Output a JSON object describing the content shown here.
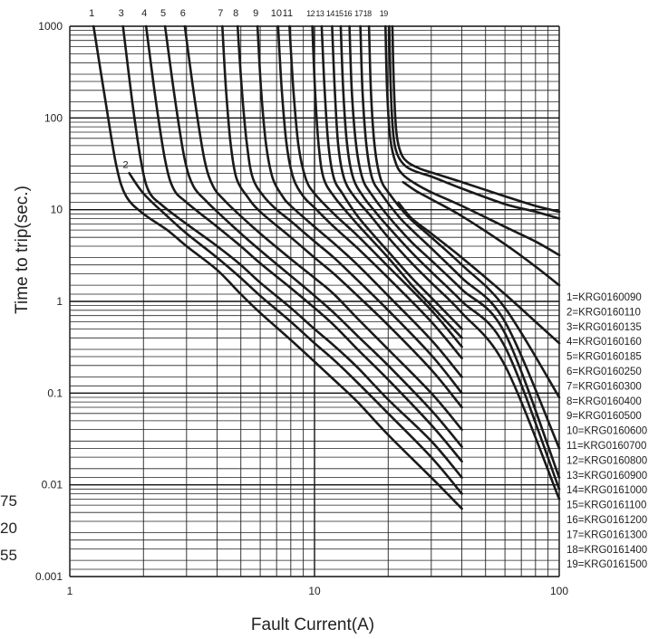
{
  "chart_data": {
    "type": "line",
    "title": "",
    "xlabel": "Fault Current(A)",
    "ylabel": "Time to trip(sec.)",
    "x_scale": "log",
    "y_scale": "log",
    "xlim": [
      1,
      100
    ],
    "ylim": [
      0.001,
      1000
    ],
    "grid": true,
    "legend_position": "right",
    "x_tick_labels": [
      {
        "value": 1,
        "label": "1"
      },
      {
        "value": 10,
        "label": "10"
      },
      {
        "value": 100,
        "label": "100"
      }
    ],
    "y_tick_labels": [
      {
        "value": 1000,
        "label": "1000"
      },
      {
        "value": 100,
        "label": "100"
      },
      {
        "value": 10,
        "label": "10"
      },
      {
        "value": 1,
        "label": "1"
      },
      {
        "value": 0.1,
        "label": "0.1"
      },
      {
        "value": 0.01,
        "label": "0.01"
      },
      {
        "value": 0.001,
        "label": "0.001"
      }
    ],
    "left_edge_labels": [
      "75",
      "20",
      "55"
    ],
    "series": [
      {
        "name": "1=KRG0160090",
        "label": "1",
        "x": [
          1.25,
          1.4,
          1.55,
          1.7,
          2,
          2.5,
          3,
          4,
          5,
          6,
          8,
          10,
          12,
          15,
          20,
          30,
          40
        ],
        "y": [
          1000,
          150,
          30,
          14,
          9,
          6,
          4,
          2.2,
          1.2,
          0.75,
          0.38,
          0.22,
          0.14,
          0.08,
          0.035,
          0.012,
          0.0055
        ]
      },
      {
        "name": "2=KRG0160110",
        "label": "2",
        "x": [
          1.75,
          2,
          2.5,
          3,
          4,
          5,
          6,
          8,
          10,
          12,
          15,
          20,
          30,
          40
        ],
        "y": [
          25,
          15,
          8.5,
          5.5,
          3,
          1.8,
          1.15,
          0.6,
          0.35,
          0.23,
          0.13,
          0.06,
          0.02,
          0.008
        ]
      },
      {
        "name": "3=KRG0160135",
        "label": "3",
        "x": [
          1.65,
          1.8,
          1.95,
          2.1,
          2.4,
          3,
          4,
          5,
          6,
          8,
          10,
          12,
          15,
          20,
          30,
          40
        ],
        "y": [
          1000,
          150,
          35,
          16,
          11,
          7,
          4,
          2.5,
          1.6,
          0.85,
          0.5,
          0.33,
          0.19,
          0.085,
          0.03,
          0.012
        ]
      },
      {
        "name": "4=KRG0160160",
        "label": "4",
        "x": [
          2.05,
          2.25,
          2.45,
          2.65,
          3,
          4,
          5,
          6,
          8,
          10,
          12,
          15,
          20,
          30,
          40
        ],
        "y": [
          1000,
          150,
          35,
          17,
          12,
          6.5,
          4,
          2.6,
          1.4,
          0.85,
          0.55,
          0.3,
          0.14,
          0.045,
          0.018
        ]
      },
      {
        "name": "5=KRG0160185",
        "label": "5",
        "x": [
          2.45,
          2.7,
          2.95,
          3.2,
          3.6,
          4,
          5,
          6,
          8,
          10,
          12,
          15,
          20,
          30,
          40
        ],
        "y": [
          1000,
          150,
          35,
          18,
          12.5,
          9.5,
          5.5,
          3.6,
          1.9,
          1.15,
          0.75,
          0.42,
          0.2,
          0.065,
          0.026
        ]
      },
      {
        "name": "6=KRG0160250",
        "label": "6",
        "x": [
          2.95,
          3.25,
          3.55,
          3.85,
          4.3,
          5,
          6,
          8,
          10,
          12,
          15,
          20,
          30,
          40
        ],
        "y": [
          1000,
          150,
          35,
          18,
          12.5,
          8.5,
          5.5,
          2.9,
          1.8,
          1.2,
          0.65,
          0.3,
          0.1,
          0.04
        ]
      },
      {
        "name": "7=KRG0160300",
        "label": "7",
        "x": [
          4.2,
          4.35,
          4.55,
          4.8,
          5.3,
          6,
          8,
          10,
          12,
          15,
          20,
          30,
          40
        ],
        "y": [
          1000,
          200,
          50,
          22,
          14,
          9.5,
          5,
          3,
          2,
          1.15,
          0.55,
          0.18,
          0.07
        ]
      },
      {
        "name": "8=KRG0160400",
        "label": "8",
        "x": [
          4.85,
          5.05,
          5.3,
          5.6,
          6.2,
          7,
          8,
          10,
          12,
          15,
          20,
          30,
          40
        ],
        "y": [
          1000,
          200,
          50,
          22,
          14,
          10,
          7.5,
          4.5,
          3,
          1.7,
          0.8,
          0.26,
          0.1
        ]
      },
      {
        "name": "9=KRG0160500",
        "label": "9",
        "x": [
          5.85,
          6.05,
          6.35,
          6.75,
          7.4,
          8,
          10,
          12,
          15,
          20,
          30,
          40
        ],
        "y": [
          1000,
          200,
          50,
          22,
          14,
          11,
          6.5,
          4.3,
          2.5,
          1.15,
          0.38,
          0.15
        ]
      },
      {
        "name": "10=KRG0160600",
        "label": "10",
        "x": [
          7.1,
          7.35,
          7.7,
          8.2,
          9,
          10,
          12,
          15,
          20,
          30,
          40
        ],
        "y": [
          1000,
          200,
          50,
          22,
          14,
          10.5,
          6.5,
          3.8,
          1.8,
          0.6,
          0.24
        ]
      },
      {
        "name": "11=KRG0160700",
        "label": "11",
        "x": [
          7.9,
          8.2,
          8.6,
          9.2,
          10,
          12,
          15,
          20,
          30,
          40
        ],
        "y": [
          1000,
          200,
          50,
          22,
          15,
          9,
          5.2,
          2.4,
          0.8,
          0.32
        ]
      },
      {
        "name": "12=KRG0160800",
        "label": "12",
        "x": [
          9.8,
          10.05,
          10.4,
          10.9,
          12,
          14,
          16,
          20,
          25,
          30,
          40
        ],
        "y": [
          1000,
          200,
          50,
          22,
          14,
          8.5,
          5.7,
          3,
          1.5,
          0.9,
          0.4
        ]
      },
      {
        "name": "13=KRG0160900",
        "label": "13",
        "x": [
          10.7,
          11,
          11.4,
          12,
          13,
          15,
          18,
          20,
          25,
          30,
          40
        ],
        "y": [
          1000,
          200,
          50,
          22,
          15,
          8.5,
          4.8,
          3.5,
          1.8,
          1.1,
          0.5
        ]
      },
      {
        "name": "14=KRG0161000",
        "label": "14",
        "x": [
          11.8,
          12.1,
          12.5,
          13.2,
          14.5,
          17,
          20,
          25,
          30,
          40,
          60,
          100
        ],
        "y": [
          1000,
          200,
          50,
          22,
          14,
          8.5,
          5,
          2.6,
          1.6,
          0.75,
          0.2,
          0.007
        ]
      },
      {
        "name": "15=KRG0161100",
        "label": "15",
        "x": [
          12.8,
          13.1,
          13.6,
          14.4,
          15.8,
          18,
          20,
          25,
          30,
          40,
          60,
          100
        ],
        "y": [
          1000,
          200,
          50,
          22,
          14,
          9,
          6.5,
          3.4,
          2.1,
          1,
          0.32,
          0.009
        ]
      },
      {
        "name": "16=KRG0161200",
        "label": "16",
        "x": [
          13.9,
          14.2,
          14.8,
          15.7,
          17,
          20,
          25,
          30,
          40,
          60,
          100
        ],
        "y": [
          1000,
          200,
          50,
          22,
          15,
          8.5,
          4.4,
          2.8,
          1.35,
          0.45,
          0.012
        ]
      },
      {
        "name": "17=KRG0161300",
        "label": "17",
        "x": [
          15.4,
          15.7,
          16.3,
          17.2,
          18.7,
          22,
          25,
          30,
          40,
          60,
          100
        ],
        "y": [
          1000,
          200,
          50,
          22,
          15,
          8.5,
          6,
          3.8,
          1.8,
          0.6,
          0.025
        ]
      },
      {
        "name": "18=KRG0161400",
        "label": "18",
        "x": [
          16.7,
          17,
          17.6,
          18.6,
          20.2,
          24,
          30,
          40,
          60,
          100
        ],
        "y": [
          1000,
          200,
          50,
          22,
          15,
          8.5,
          5,
          2.5,
          0.85,
          0.09
        ]
      },
      {
        "name": "19=KRG0161500",
        "label": "19",
        "x": [
          19.5,
          19.8,
          20.4,
          21.5,
          23,
          26,
          30,
          40,
          60,
          80,
          100
        ],
        "y": [
          1000,
          200,
          60,
          32,
          24,
          19,
          15.5,
          11,
          6.5,
          4.5,
          3.2
        ]
      }
    ],
    "extra_curves": [
      {
        "x": [
          20.2,
          20.5,
          21,
          21.8,
          23.5,
          26,
          30,
          40,
          60,
          80,
          100
        ],
        "y": [
          1000,
          200,
          65,
          40,
          30,
          26,
          23,
          17,
          11.5,
          9.5,
          8
        ]
      },
      {
        "x": [
          20.8,
          21.1,
          21.6,
          22.5,
          24,
          27,
          30,
          40,
          60,
          80,
          100
        ],
        "y": [
          1000,
          220,
          70,
          42,
          33,
          28,
          25.5,
          20,
          14,
          11,
          9.5
        ]
      },
      {
        "x": [
          23,
          26,
          30,
          40,
          60,
          80,
          100
        ],
        "y": [
          20,
          16,
          13,
          8.5,
          4.2,
          2.4,
          1.5
        ]
      },
      {
        "x": [
          22,
          25,
          30,
          40,
          60,
          80,
          100
        ],
        "y": [
          12,
          8,
          5.5,
          3,
          1.2,
          0.6,
          0.35
        ]
      }
    ]
  }
}
